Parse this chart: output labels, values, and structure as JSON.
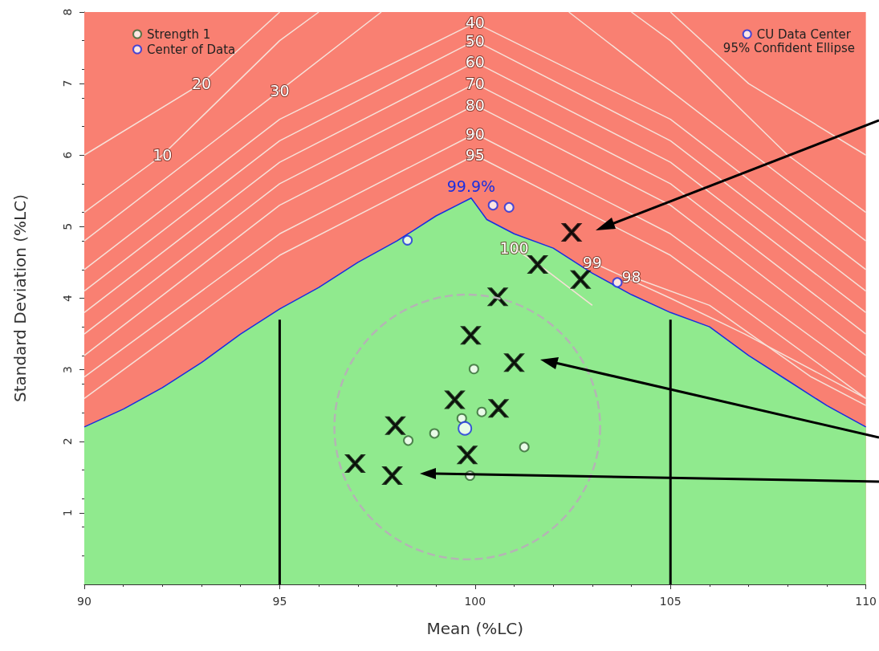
{
  "chart_data": {
    "type": "scatter",
    "xlabel": "Mean (%LC)",
    "ylabel": "Standard Deviation (%LC)",
    "xlim": [
      90,
      110
    ],
    "xticks": [
      90,
      95,
      100,
      105,
      110
    ],
    "ylim": [
      0,
      8
    ],
    "yticks": [
      1,
      2,
      3,
      4,
      5,
      6,
      7,
      8
    ],
    "grid": false,
    "legend": "top",
    "annotations": [
      "95% Confident Ellipse"
    ],
    "bands": [
      {
        "axis": "y",
        "from": 0,
        "to": 8,
        "color": "#f98072"
      }
    ],
    "series": [
      {
        "type": "area",
        "color": "#90ea8e",
        "x": [
          90,
          91,
          92,
          93,
          94,
          95,
          96,
          97,
          98,
          99,
          99.9,
          100.3,
          101,
          102,
          103,
          104,
          105,
          106,
          107,
          108,
          109,
          110
        ],
        "values": [
          2.2,
          2.45,
          2.75,
          3.1,
          3.5,
          3.85,
          4.15,
          4.5,
          4.8,
          5.15,
          5.4,
          5.1,
          4.9,
          4.7,
          4.35,
          4.05,
          3.8,
          3.6,
          3.2,
          2.85,
          2.5,
          2.2
        ]
      },
      {
        "type": "line",
        "name": "99.9%",
        "color": "#1a2ee0",
        "x": [
          90,
          91,
          92,
          93,
          94,
          95,
          96,
          97,
          98,
          99,
          99.9,
          100.3,
          101,
          102,
          103,
          104,
          105,
          106,
          107,
          108,
          109,
          110
        ],
        "values": [
          2.2,
          2.45,
          2.75,
          3.1,
          3.5,
          3.85,
          4.15,
          4.5,
          4.8,
          5.15,
          5.4,
          5.1,
          4.9,
          4.7,
          4.35,
          4.05,
          3.8,
          3.6,
          3.2,
          2.85,
          2.5,
          2.2
        ]
      },
      {
        "type": "line",
        "name": "100",
        "color": "#f7e0d8",
        "x": [
          101,
          101.8,
          103
        ],
        "values": [
          4.7,
          4.4,
          3.9
        ]
      },
      {
        "type": "line",
        "name": "99",
        "color": "#f7e0d8",
        "x": [
          103,
          105,
          106.9,
          110
        ],
        "values": [
          4.5,
          4.0,
          3.5,
          2.6
        ]
      },
      {
        "type": "line",
        "name": "98",
        "color": "#f7e0d8",
        "x": [
          104,
          106,
          108.6,
          110
        ],
        "values": [
          4.3,
          3.9,
          2.9,
          2.5
        ]
      },
      {
        "type": "line",
        "name": "95",
        "color": "#f7e0d8",
        "x": [
          90,
          95,
          100,
          105,
          110
        ],
        "values": [
          2.6,
          4.6,
          6.0,
          4.6,
          2.6
        ]
      },
      {
        "type": "line",
        "name": "90",
        "color": "#f7e0d8",
        "x": [
          90,
          95,
          100,
          105,
          110
        ],
        "values": [
          2.9,
          4.9,
          6.3,
          4.9,
          2.9
        ]
      },
      {
        "type": "line",
        "name": "80",
        "color": "#f7e0d8",
        "x": [
          90,
          95,
          100,
          105,
          110
        ],
        "values": [
          3.2,
          5.3,
          6.7,
          5.3,
          3.2
        ]
      },
      {
        "type": "line",
        "name": "70",
        "color": "#f7e0d8",
        "x": [
          90,
          95,
          100,
          105,
          110
        ],
        "values": [
          3.5,
          5.6,
          7.0,
          5.6,
          3.5
        ]
      },
      {
        "type": "line",
        "name": "60",
        "color": "#f7e0d8",
        "x": [
          90,
          95,
          100,
          105,
          110
        ],
        "values": [
          3.8,
          5.9,
          7.3,
          5.9,
          3.8
        ]
      },
      {
        "type": "line",
        "name": "50",
        "color": "#f7e0d8",
        "x": [
          90,
          95,
          100,
          105,
          110
        ],
        "values": [
          4.1,
          6.2,
          7.6,
          6.2,
          4.1
        ]
      },
      {
        "type": "line",
        "name": "40",
        "color": "#f7e0d8",
        "x": [
          90,
          95,
          100,
          105,
          110
        ],
        "values": [
          4.4,
          6.5,
          7.85,
          6.5,
          4.4
        ]
      },
      {
        "type": "line",
        "name": "30",
        "color": "#f7e0d8",
        "x": [
          90,
          95,
          97.6,
          100,
          102.4,
          105,
          110
        ],
        "values": [
          4.8,
          6.9,
          8,
          null,
          8,
          6.9,
          4.8
        ]
      },
      {
        "type": "line",
        "name": "20",
        "color": "#f7e0d8",
        "x": [
          90,
          93,
          95,
          100,
          105,
          107,
          110
        ],
        "values": [
          6.0,
          7.0,
          8,
          null,
          8,
          7.0,
          6.0
        ]
      },
      {
        "type": "line",
        "name": "10",
        "color": "#f7e0d8",
        "x": [
          90,
          92,
          95,
          96,
          100,
          104,
          105,
          108,
          110
        ],
        "values": [
          5.2,
          6.0,
          7.6,
          8,
          null,
          8,
          7.6,
          6.0,
          5.2
        ]
      },
      {
        "type": "line",
        "color": "#000000",
        "x": [
          95,
          95
        ],
        "values": [
          0,
          3.7
        ]
      },
      {
        "type": "line",
        "color": "#000000",
        "x": [
          105,
          105
        ],
        "values": [
          0,
          3.7
        ]
      },
      {
        "name": "Strength 1",
        "color": "#336633",
        "marker": "circle",
        "x": [
          99.97,
          100.17,
          99.66,
          98.96,
          98.29,
          101.26,
          99.87
        ],
        "values": [
          3.01,
          2.41,
          2.32,
          2.11,
          2.01,
          1.92,
          1.52
        ]
      },
      {
        "name": "Center of Data",
        "color": "#1a2ee0",
        "marker": "circle",
        "x": [
          99.74
        ],
        "values": [
          2.18
        ]
      },
      {
        "name": "CU Data Center",
        "color": "#1a2ee0",
        "marker": "circle",
        "x": [
          98.27,
          103.64,
          100.46,
          100.87
        ],
        "values": [
          4.81,
          4.22,
          5.3,
          5.27
        ]
      },
      {
        "color": "#000000",
        "marker": "cross",
        "x": [
          102.47,
          101.6,
          102.7,
          100.58,
          99.89,
          101.0,
          99.48,
          100.6,
          97.96,
          99.8,
          96.93,
          97.88
        ],
        "values": [
          4.92,
          4.47,
          4.26,
          4.02,
          3.48,
          3.1,
          2.58,
          2.46,
          2.22,
          1.81,
          1.69,
          1.52
        ]
      }
    ]
  }
}
